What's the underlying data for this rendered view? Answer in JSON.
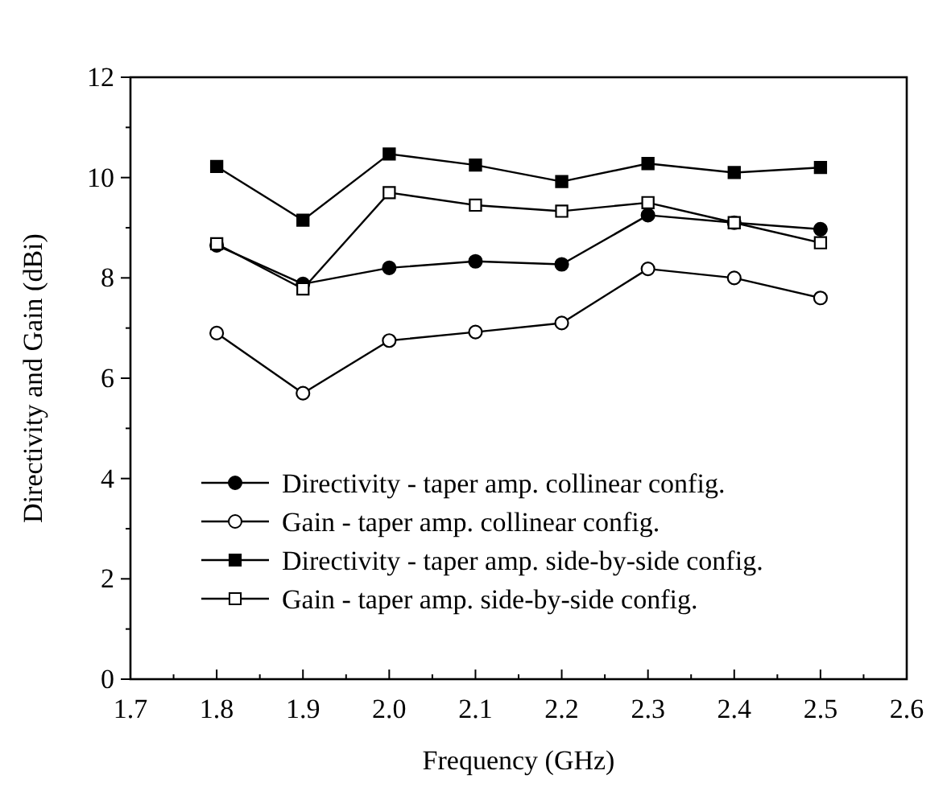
{
  "chart_data": {
    "type": "line",
    "xlabel": "Frequency (GHz)",
    "ylabel": "Directivity and Gain (dBi)",
    "x": [
      1.8,
      1.9,
      2.0,
      2.1,
      2.2,
      2.3,
      2.4,
      2.5
    ],
    "series": [
      {
        "name": "Directivity - taper amp. collinear config.",
        "color": "#000000",
        "marker": "circle",
        "values": [
          8.65,
          7.88,
          8.2,
          8.33,
          8.27,
          9.25,
          9.1,
          8.97
        ]
      },
      {
        "name": "Gain - taper amp. collinear config.",
        "color": "#000000",
        "marker": "circle",
        "values": [
          6.9,
          5.7,
          6.75,
          6.92,
          7.1,
          8.18,
          8.0,
          7.6
        ]
      },
      {
        "name": "Directivity - taper amp. side-by-side config.",
        "color": "#000000",
        "marker": "square",
        "values": [
          10.22,
          9.15,
          10.47,
          10.25,
          9.92,
          10.28,
          10.1,
          10.2
        ]
      },
      {
        "name": "Gain - taper amp. side-by-side config.",
        "color": "#000000",
        "marker": "square",
        "values": [
          8.68,
          7.78,
          9.7,
          9.45,
          9.33,
          9.5,
          9.1,
          8.7
        ]
      }
    ],
    "xlim": [
      1.7,
      2.6
    ],
    "xticks": [
      {
        "value": 1.7,
        "label": "1.7"
      },
      {
        "value": 1.75,
        "label": null
      },
      {
        "value": 1.8,
        "label": "1.8"
      },
      {
        "value": 1.85,
        "label": null
      },
      {
        "value": 1.9,
        "label": "1.9"
      },
      {
        "value": 1.95,
        "label": null
      },
      {
        "value": 2.0,
        "label": "2.0"
      },
      {
        "value": 2.05,
        "label": null
      },
      {
        "value": 2.1,
        "label": "2.1"
      },
      {
        "value": 2.15,
        "label": null
      },
      {
        "value": 2.2,
        "label": "2.2"
      },
      {
        "value": 2.25,
        "label": null
      },
      {
        "value": 2.3,
        "label": "2.3"
      },
      {
        "value": 2.35,
        "label": null
      },
      {
        "value": 2.4,
        "label": "2.4"
      },
      {
        "value": 2.45,
        "label": null
      },
      {
        "value": 2.5,
        "label": "2.5"
      },
      {
        "value": 2.55,
        "label": null
      },
      {
        "value": 2.6,
        "label": "2.6"
      }
    ],
    "ylim": [
      0,
      12
    ],
    "yticks": [
      0,
      {
        "value": 1,
        "label": null
      },
      2,
      {
        "value": 3,
        "label": null
      },
      4,
      {
        "value": 5,
        "label": null
      },
      6,
      {
        "value": 7,
        "label": null
      },
      8,
      {
        "value": 9,
        "label": null
      },
      10,
      {
        "value": 11,
        "label": null
      },
      12
    ],
    "grid": false,
    "legend": "bottom left",
    "line_style": "solid"
  }
}
